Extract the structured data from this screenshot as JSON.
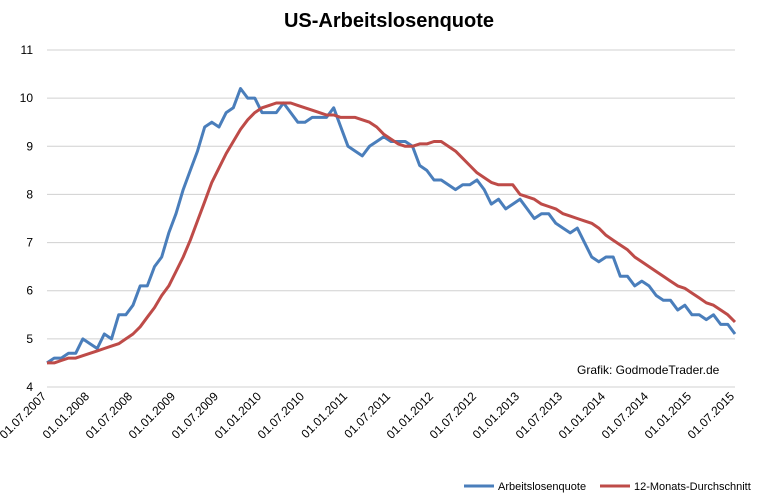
{
  "chart_data": {
    "type": "line",
    "title": "US-Arbeitslosenquote",
    "annotation": "Grafik: GodmodeTrader.de",
    "categories": [
      "01.07.2007",
      null,
      null,
      null,
      null,
      null,
      "01.01.2008",
      null,
      null,
      null,
      null,
      null,
      "01.07.2008",
      null,
      null,
      null,
      null,
      null,
      "01.01.2009",
      null,
      null,
      null,
      null,
      null,
      "01.07.2009",
      null,
      null,
      null,
      null,
      null,
      "01.01.2010",
      null,
      null,
      null,
      null,
      null,
      "01.07.2010",
      null,
      null,
      null,
      null,
      null,
      "01.01.2011",
      null,
      null,
      null,
      null,
      null,
      "01.07.2011",
      null,
      null,
      null,
      null,
      null,
      "01.01.2012",
      null,
      null,
      null,
      null,
      null,
      "01.07.2012",
      null,
      null,
      null,
      null,
      null,
      "01.01.2013",
      null,
      null,
      null,
      null,
      null,
      "01.07.2013",
      null,
      null,
      null,
      null,
      null,
      "01.01.2014",
      null,
      null,
      null,
      null,
      null,
      "01.07.2014",
      null,
      null,
      null,
      null,
      null,
      "01.01.2015",
      null,
      null,
      null,
      null,
      null,
      "01.07.2015"
    ],
    "series": [
      {
        "name": "Arbeitslosenquote",
        "color": "#4a7ebb",
        "values": [
          4.5,
          4.6,
          4.6,
          4.7,
          4.7,
          5.0,
          4.9,
          4.8,
          5.1,
          5.0,
          5.5,
          5.5,
          5.7,
          6.1,
          6.1,
          6.5,
          6.7,
          7.2,
          7.6,
          8.1,
          8.5,
          8.9,
          9.4,
          9.5,
          9.4,
          9.7,
          9.8,
          10.2,
          10.0,
          10.0,
          9.7,
          9.7,
          9.7,
          9.9,
          9.7,
          9.5,
          9.5,
          9.6,
          9.6,
          9.6,
          9.8,
          9.4,
          9.0,
          8.9,
          8.8,
          9.0,
          9.1,
          9.2,
          9.1,
          9.1,
          9.1,
          9.0,
          8.6,
          8.5,
          8.3,
          8.3,
          8.2,
          8.1,
          8.2,
          8.2,
          8.3,
          8.1,
          7.8,
          7.9,
          7.7,
          7.8,
          7.9,
          7.7,
          7.5,
          7.6,
          7.6,
          7.4,
          7.3,
          7.2,
          7.3,
          7.0,
          6.7,
          6.6,
          6.7,
          6.7,
          6.3,
          6.3,
          6.1,
          6.2,
          6.1,
          5.9,
          5.8,
          5.8,
          5.6,
          5.7,
          5.5,
          5.5,
          5.4,
          5.5,
          5.3,
          5.3,
          5.1
        ]
      },
      {
        "name": "12-Monats-Durchschnitt",
        "color": "#be4b48",
        "values": [
          4.5,
          4.5,
          4.55,
          4.6,
          4.6,
          4.65,
          4.7,
          4.75,
          4.8,
          4.85,
          4.9,
          5.0,
          5.1,
          5.25,
          5.45,
          5.65,
          5.9,
          6.1,
          6.4,
          6.7,
          7.05,
          7.45,
          7.85,
          8.25,
          8.55,
          8.85,
          9.1,
          9.35,
          9.55,
          9.7,
          9.8,
          9.85,
          9.9,
          9.9,
          9.9,
          9.85,
          9.8,
          9.75,
          9.7,
          9.65,
          9.65,
          9.6,
          9.6,
          9.6,
          9.55,
          9.5,
          9.4,
          9.25,
          9.15,
          9.05,
          9.0,
          9.0,
          9.05,
          9.05,
          9.1,
          9.1,
          9.0,
          8.9,
          8.75,
          8.6,
          8.45,
          8.35,
          8.25,
          8.2,
          8.2,
          8.2,
          8.0,
          7.95,
          7.9,
          7.8,
          7.75,
          7.7,
          7.6,
          7.55,
          7.5,
          7.45,
          7.4,
          7.3,
          7.15,
          7.05,
          6.95,
          6.85,
          6.7,
          6.6,
          6.5,
          6.4,
          6.3,
          6.2,
          6.1,
          6.05,
          5.95,
          5.85,
          5.75,
          5.7,
          5.6,
          5.5,
          5.35
        ]
      }
    ],
    "ylim": [
      4,
      11
    ],
    "yticks": [
      4,
      5,
      6,
      7,
      8,
      9,
      10,
      11
    ],
    "grid": true,
    "legend": "bottom-right"
  }
}
